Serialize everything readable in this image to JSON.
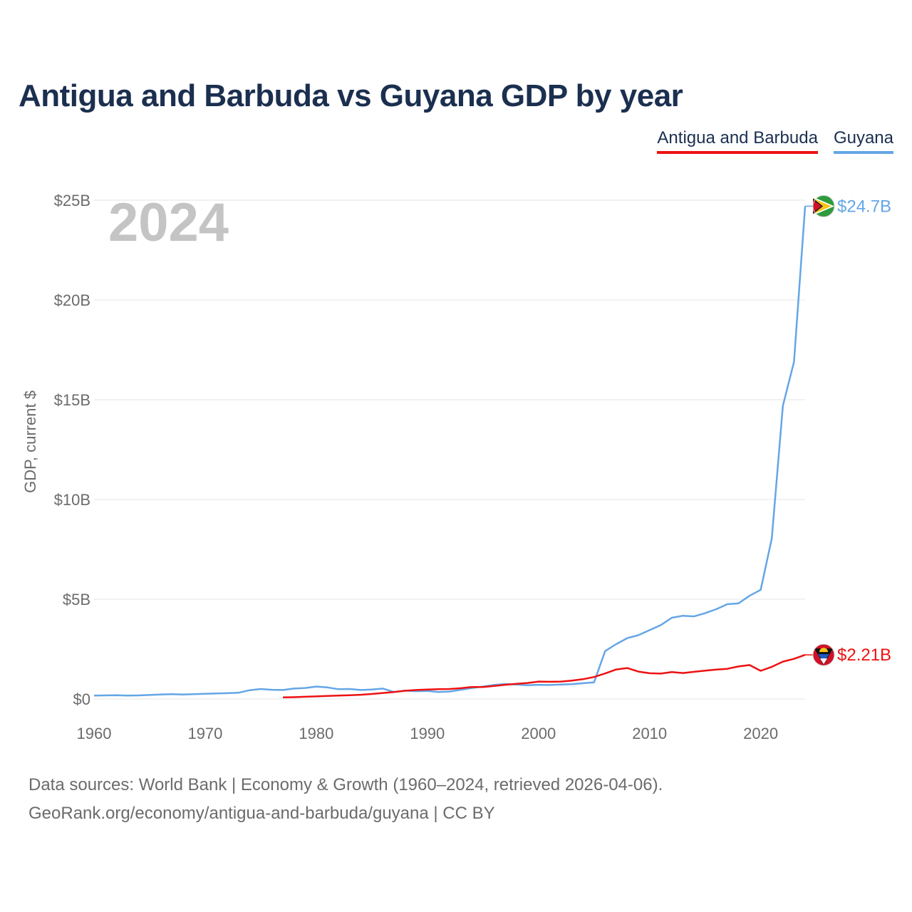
{
  "title": "Antigua and Barbuda vs Guyana GDP by year",
  "legend": [
    {
      "label": "Antigua and Barbuda",
      "color": "#ee1111"
    },
    {
      "label": "Guyana",
      "color": "#64a6e6"
    }
  ],
  "sources": {
    "line1": "Data sources: World Bank | Economy & Growth (1960–2024, retrieved 2026-04-06).",
    "line2": "GeoRank.org/economy/antigua-and-barbuda/guyana | CC BY"
  },
  "chart_data": {
    "type": "line",
    "title": "Antigua and Barbuda vs Guyana GDP by year",
    "xlabel": "",
    "ylabel": "GDP, current $",
    "year_display": "2024",
    "xlim": [
      1960,
      2024
    ],
    "ylim": [
      0,
      25
    ],
    "x_ticks": [
      1960,
      1970,
      1980,
      1990,
      2000,
      2010,
      2020
    ],
    "x_tick_labels": [
      "1960",
      "1970",
      "1980",
      "1990",
      "2000",
      "2010",
      "2020"
    ],
    "y_ticks": [
      0,
      5,
      10,
      15,
      20,
      25
    ],
    "y_tick_labels": [
      "$0",
      "$5B",
      "$10B",
      "$15B",
      "$20B",
      "$25B"
    ],
    "grid": true,
    "units": "billions of current US$",
    "series": [
      {
        "name": "Guyana",
        "color": "#64a6e6",
        "end_label": "$24.7B",
        "points": [
          [
            1960,
            0.17
          ],
          [
            1961,
            0.18
          ],
          [
            1962,
            0.19
          ],
          [
            1963,
            0.17
          ],
          [
            1964,
            0.18
          ],
          [
            1965,
            0.2
          ],
          [
            1966,
            0.22
          ],
          [
            1967,
            0.24
          ],
          [
            1968,
            0.22
          ],
          [
            1969,
            0.24
          ],
          [
            1970,
            0.26
          ],
          [
            1971,
            0.28
          ],
          [
            1972,
            0.29
          ],
          [
            1973,
            0.31
          ],
          [
            1974,
            0.44
          ],
          [
            1975,
            0.5
          ],
          [
            1976,
            0.46
          ],
          [
            1977,
            0.45
          ],
          [
            1978,
            0.52
          ],
          [
            1979,
            0.55
          ],
          [
            1980,
            0.62
          ],
          [
            1981,
            0.58
          ],
          [
            1982,
            0.49
          ],
          [
            1983,
            0.5
          ],
          [
            1984,
            0.45
          ],
          [
            1985,
            0.47
          ],
          [
            1986,
            0.52
          ],
          [
            1987,
            0.35
          ],
          [
            1988,
            0.42
          ],
          [
            1989,
            0.39
          ],
          [
            1990,
            0.4
          ],
          [
            1991,
            0.35
          ],
          [
            1992,
            0.37
          ],
          [
            1993,
            0.46
          ],
          [
            1994,
            0.55
          ],
          [
            1995,
            0.62
          ],
          [
            1996,
            0.7
          ],
          [
            1997,
            0.75
          ],
          [
            1998,
            0.72
          ],
          [
            1999,
            0.69
          ],
          [
            2000,
            0.71
          ],
          [
            2001,
            0.7
          ],
          [
            2002,
            0.72
          ],
          [
            2003,
            0.74
          ],
          [
            2004,
            0.79
          ],
          [
            2005,
            0.83
          ],
          [
            2006,
            2.4
          ],
          [
            2007,
            2.75
          ],
          [
            2008,
            3.05
          ],
          [
            2009,
            3.2
          ],
          [
            2010,
            3.45
          ],
          [
            2011,
            3.7
          ],
          [
            2012,
            4.07
          ],
          [
            2013,
            4.17
          ],
          [
            2014,
            4.14
          ],
          [
            2015,
            4.3
          ],
          [
            2016,
            4.5
          ],
          [
            2017,
            4.75
          ],
          [
            2018,
            4.79
          ],
          [
            2019,
            5.17
          ],
          [
            2020,
            5.47
          ],
          [
            2021,
            8.04
          ],
          [
            2022,
            14.7
          ],
          [
            2023,
            16.9
          ],
          [
            2024,
            24.7
          ]
        ]
      },
      {
        "name": "Antigua and Barbuda",
        "color": "#ee1111",
        "end_label": "$2.21B",
        "points": [
          [
            1977,
            0.08
          ],
          [
            1978,
            0.09
          ],
          [
            1979,
            0.11
          ],
          [
            1980,
            0.13
          ],
          [
            1981,
            0.15
          ],
          [
            1982,
            0.17
          ],
          [
            1983,
            0.19
          ],
          [
            1984,
            0.21
          ],
          [
            1985,
            0.25
          ],
          [
            1986,
            0.3
          ],
          [
            1987,
            0.35
          ],
          [
            1988,
            0.41
          ],
          [
            1989,
            0.45
          ],
          [
            1990,
            0.47
          ],
          [
            1991,
            0.49
          ],
          [
            1992,
            0.5
          ],
          [
            1993,
            0.54
          ],
          [
            1994,
            0.6
          ],
          [
            1995,
            0.6
          ],
          [
            1996,
            0.65
          ],
          [
            1997,
            0.71
          ],
          [
            1998,
            0.76
          ],
          [
            1999,
            0.8
          ],
          [
            2000,
            0.87
          ],
          [
            2001,
            0.86
          ],
          [
            2002,
            0.87
          ],
          [
            2003,
            0.92
          ],
          [
            2004,
            0.99
          ],
          [
            2005,
            1.1
          ],
          [
            2006,
            1.28
          ],
          [
            2007,
            1.48
          ],
          [
            2008,
            1.55
          ],
          [
            2009,
            1.37
          ],
          [
            2010,
            1.29
          ],
          [
            2011,
            1.27
          ],
          [
            2012,
            1.35
          ],
          [
            2013,
            1.3
          ],
          [
            2014,
            1.36
          ],
          [
            2015,
            1.42
          ],
          [
            2016,
            1.47
          ],
          [
            2017,
            1.51
          ],
          [
            2018,
            1.63
          ],
          [
            2019,
            1.7
          ],
          [
            2020,
            1.41
          ],
          [
            2021,
            1.61
          ],
          [
            2022,
            1.87
          ],
          [
            2023,
            2.01
          ],
          [
            2024,
            2.21
          ]
        ]
      }
    ]
  }
}
